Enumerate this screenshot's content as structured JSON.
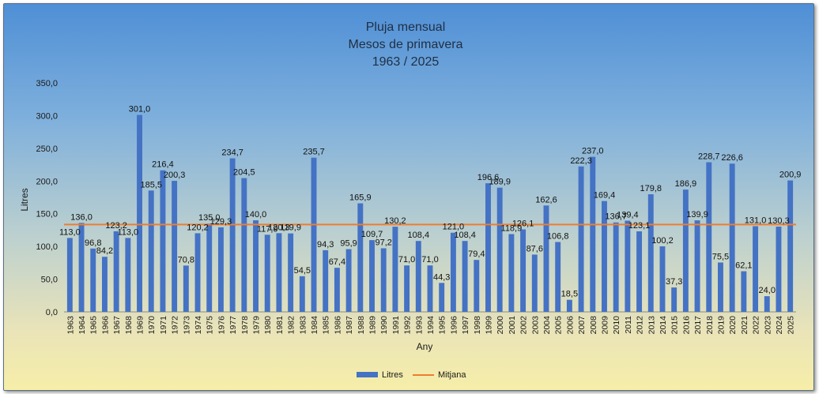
{
  "chart_data": {
    "type": "bar",
    "title": [
      "Pluja mensual",
      "Mesos de primavera",
      "1963 / 2025"
    ],
    "xlabel": "Any",
    "ylabel": "Litres",
    "ylim": [
      0,
      350
    ],
    "ytick_labels": [
      "0,0",
      "50,0",
      "100,0",
      "150,0",
      "200,0",
      "250,0",
      "300,0",
      "350,0"
    ],
    "yticks": [
      0,
      50,
      100,
      150,
      200,
      250,
      300,
      350
    ],
    "grid": false,
    "legend_position": "bottom",
    "categories": [
      "1963",
      "1964",
      "1965",
      "1966",
      "1967",
      "1968",
      "1969",
      "1970",
      "1971",
      "1972",
      "1973",
      "1974",
      "1975",
      "1976",
      "1977",
      "1978",
      "1979",
      "1980",
      "1981",
      "1982",
      "1983",
      "1984",
      "1985",
      "1986",
      "1987",
      "1988",
      "1989",
      "1990",
      "1991",
      "1992",
      "1993",
      "1994",
      "1995",
      "1996",
      "1997",
      "1998",
      "1999",
      "2000",
      "2001",
      "2002",
      "2003",
      "2004",
      "2005",
      "2006",
      "2007",
      "2008",
      "2009",
      "2010",
      "2011",
      "2012",
      "2013",
      "2014",
      "2015",
      "2016",
      "2017",
      "2018",
      "2019",
      "2020",
      "2021",
      "2022",
      "2023",
      "2024",
      "2025"
    ],
    "series": [
      {
        "name": "Litres",
        "type": "bar",
        "color": "#4472c4",
        "values": [
          113.0,
          136.0,
          96.8,
          84.2,
          123.2,
          113.0,
          301.0,
          185.5,
          216.4,
          200.3,
          70.8,
          120.2,
          135.0,
          129.3,
          234.7,
          204.5,
          140.0,
          117.9,
          120.3,
          119.9,
          54.5,
          235.7,
          94.3,
          67.4,
          95.9,
          165.9,
          109.7,
          97.2,
          130.2,
          71.0,
          108.4,
          71.0,
          44.3,
          121.0,
          108.4,
          79.4,
          196.6,
          189.9,
          118.9,
          126.1,
          87.6,
          162.6,
          106.8,
          18.5,
          222.3,
          237.0,
          169.4,
          136.7,
          139.4,
          123.1,
          179.8,
          100.2,
          37.3,
          186.9,
          139.9,
          228.7,
          75.5,
          226.6,
          62.1,
          131.0,
          24.0,
          130.3,
          200.9
        ],
        "value_labels": [
          "113,0",
          "136,0",
          "96,8",
          "84,2",
          "123,2",
          "113,0",
          "301,0",
          "185,5",
          "216,4",
          "200,3",
          "70,8",
          "120,2",
          "135,0",
          "129,3",
          "234,7",
          "204,5",
          "140,0",
          "117,9",
          "120,3",
          "119,9",
          "54,5",
          "235,7",
          "94,3",
          "67,4",
          "95,9",
          "165,9",
          "109,7",
          "97,2",
          "130,2",
          "71,0",
          "108,4",
          "71,0",
          "44,3",
          "121,0",
          "108,4",
          "79,4",
          "196,6",
          "189,9",
          "118,9",
          "126,1",
          "87,6",
          "162,6",
          "106,8",
          "18,5",
          "222,3",
          "237,0",
          "169,4",
          "136,7",
          "139,4",
          "123,1",
          "179,8",
          "100,2",
          "37,3",
          "186,9",
          "139,9",
          "228,7",
          "75,5",
          "226,6",
          "62,1",
          "131,0",
          "24,0",
          "130,3",
          "200,9"
        ]
      },
      {
        "name": "Mitjana",
        "type": "line",
        "color": "#ed7d31",
        "value": 133.5
      }
    ]
  }
}
